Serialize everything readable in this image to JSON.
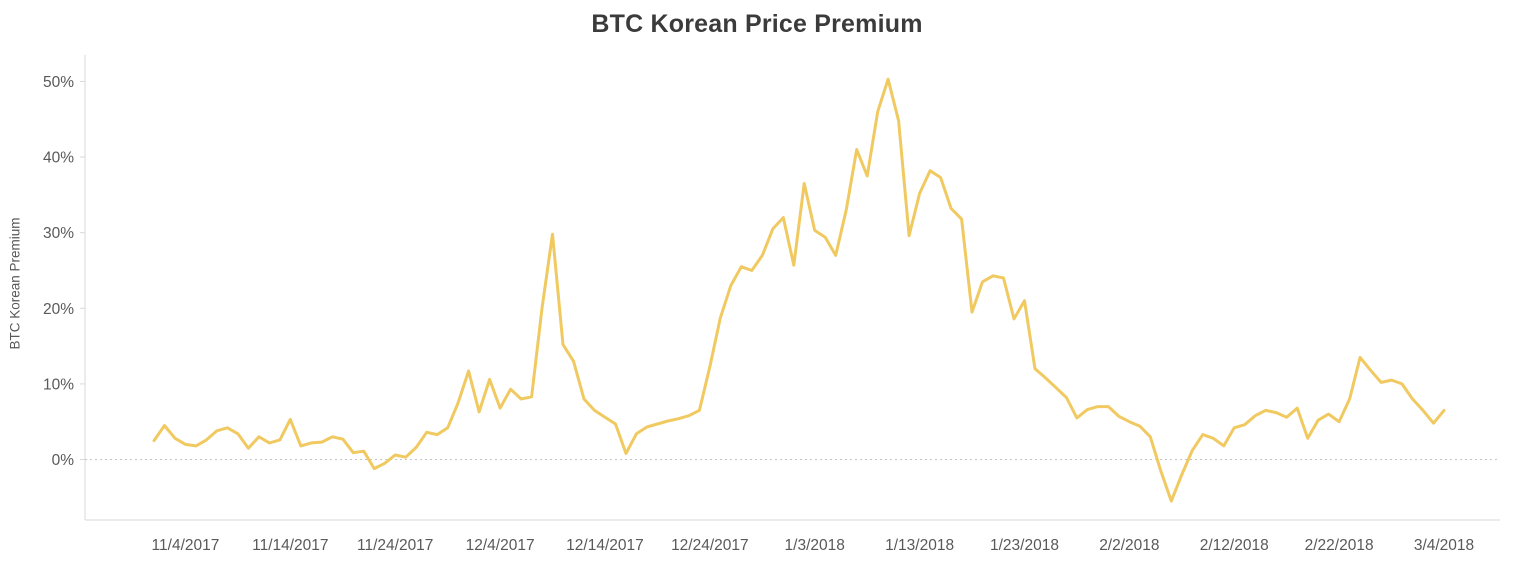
{
  "colors": {
    "line": "#F0C960",
    "title_text": "#3B3B3B",
    "tick_text": "#595959",
    "axis": "#D9D9D9",
    "zero_line": "#C4C4C4",
    "background": "#FFFFFF"
  },
  "chart_data": {
    "type": "line",
    "title": "BTC Korean Price Premium",
    "xlabel": "",
    "ylabel": "BTC Korean Premium",
    "ylim": [
      -8,
      53.5
    ],
    "grid": "zero-baseline-dotted-only",
    "legend": "none",
    "y_ticks": [
      "0%",
      "10%",
      "20%",
      "30%",
      "40%",
      "50%"
    ],
    "y_tick_values": [
      0,
      10,
      20,
      30,
      40,
      50
    ],
    "x_ticks": [
      {
        "label": "11/4/2017",
        "index": 3
      },
      {
        "label": "11/14/2017",
        "index": 13
      },
      {
        "label": "11/24/2017",
        "index": 23
      },
      {
        "label": "12/4/2017",
        "index": 33
      },
      {
        "label": "12/14/2017",
        "index": 43
      },
      {
        "label": "12/24/2017",
        "index": 53
      },
      {
        "label": "1/3/2018",
        "index": 63
      },
      {
        "label": "1/13/2018",
        "index": 73
      },
      {
        "label": "1/23/2018",
        "index": 83
      },
      {
        "label": "2/2/2018",
        "index": 93
      },
      {
        "label": "2/12/2018",
        "index": 103
      },
      {
        "label": "2/22/2018",
        "index": 113
      },
      {
        "label": "3/4/2018",
        "index": 123
      }
    ],
    "series": [
      {
        "name": "BTC Korean Premium",
        "color": "#F0C960",
        "dates": [
          "11/1/2017",
          "11/2/2017",
          "11/3/2017",
          "11/4/2017",
          "11/5/2017",
          "11/6/2017",
          "11/7/2017",
          "11/8/2017",
          "11/9/2017",
          "11/10/2017",
          "11/11/2017",
          "11/12/2017",
          "11/13/2017",
          "11/14/2017",
          "11/15/2017",
          "11/16/2017",
          "11/17/2017",
          "11/18/2017",
          "11/19/2017",
          "11/20/2017",
          "11/21/2017",
          "11/22/2017",
          "11/23/2017",
          "11/24/2017",
          "11/25/2017",
          "11/26/2017",
          "11/27/2017",
          "11/28/2017",
          "11/29/2017",
          "11/30/2017",
          "12/1/2017",
          "12/2/2017",
          "12/3/2017",
          "12/4/2017",
          "12/5/2017",
          "12/6/2017",
          "12/7/2017",
          "12/8/2017",
          "12/9/2017",
          "12/10/2017",
          "12/11/2017",
          "12/12/2017",
          "12/13/2017",
          "12/14/2017",
          "12/15/2017",
          "12/16/2017",
          "12/17/2017",
          "12/18/2017",
          "12/19/2017",
          "12/20/2017",
          "12/21/2017",
          "12/22/2017",
          "12/23/2017",
          "12/24/2017",
          "12/25/2017",
          "12/26/2017",
          "12/27/2017",
          "12/28/2017",
          "12/29/2017",
          "12/30/2017",
          "12/31/2017",
          "1/1/2018",
          "1/2/2018",
          "1/3/2018",
          "1/4/2018",
          "1/5/2018",
          "1/6/2018",
          "1/7/2018",
          "1/8/2018",
          "1/9/2018",
          "1/10/2018",
          "1/11/2018",
          "1/12/2018",
          "1/13/2018",
          "1/14/2018",
          "1/15/2018",
          "1/16/2018",
          "1/17/2018",
          "1/18/2018",
          "1/19/2018",
          "1/20/2018",
          "1/21/2018",
          "1/22/2018",
          "1/23/2018",
          "1/24/2018",
          "1/25/2018",
          "1/26/2018",
          "1/27/2018",
          "1/28/2018",
          "1/29/2018",
          "1/30/2018",
          "1/31/2018",
          "2/1/2018",
          "2/2/2018",
          "2/3/2018",
          "2/4/2018",
          "2/5/2018",
          "2/6/2018",
          "2/7/2018",
          "2/8/2018",
          "2/9/2018",
          "2/10/2018",
          "2/11/2018",
          "2/12/2018",
          "2/13/2018",
          "2/14/2018",
          "2/15/2018",
          "2/16/2018",
          "2/17/2018",
          "2/18/2018",
          "2/19/2018",
          "2/20/2018",
          "2/21/2018",
          "2/22/2018",
          "2/23/2018",
          "2/24/2018",
          "2/25/2018",
          "2/26/2018",
          "2/27/2018",
          "2/28/2018",
          "3/1/2018",
          "3/2/2018",
          "3/3/2018",
          "3/4/2018"
        ],
        "values": [
          2.5,
          4.5,
          2.8,
          2.0,
          1.8,
          2.6,
          3.8,
          4.2,
          3.4,
          1.5,
          3.0,
          2.2,
          2.6,
          5.3,
          1.8,
          2.2,
          2.3,
          3.0,
          2.7,
          0.9,
          1.1,
          -1.2,
          -0.5,
          0.6,
          0.3,
          1.6,
          3.6,
          3.3,
          4.2,
          7.5,
          11.7,
          6.3,
          10.6,
          6.8,
          9.3,
          8.0,
          8.3,
          20.0,
          29.8,
          15.2,
          13.0,
          8.0,
          6.5,
          5.6,
          4.7,
          0.8,
          3.4,
          4.3,
          4.7,
          5.1,
          5.4,
          5.8,
          6.5,
          12.3,
          18.7,
          23.0,
          25.5,
          25.0,
          27.0,
          30.5,
          32.0,
          25.7,
          36.5,
          30.3,
          29.4,
          27.0,
          33.0,
          41.0,
          37.5,
          46.0,
          50.3,
          44.8,
          29.6,
          35.2,
          38.2,
          37.3,
          33.2,
          31.8,
          19.5,
          23.5,
          24.3,
          24.0,
          18.6,
          21.0,
          12.0,
          10.8,
          9.5,
          8.2,
          5.5,
          6.6,
          7.0,
          7.0,
          5.7,
          5.0,
          4.4,
          3.0,
          -1.5,
          -5.5,
          -2.0,
          1.2,
          3.3,
          2.8,
          1.8,
          4.2,
          4.6,
          5.8,
          6.5,
          6.2,
          5.6,
          6.8,
          2.8,
          5.2,
          6.0,
          5.0,
          8.0,
          13.5,
          11.8,
          10.2,
          10.5,
          10.0,
          8.0,
          6.5,
          4.8,
          6.5
        ]
      }
    ]
  }
}
